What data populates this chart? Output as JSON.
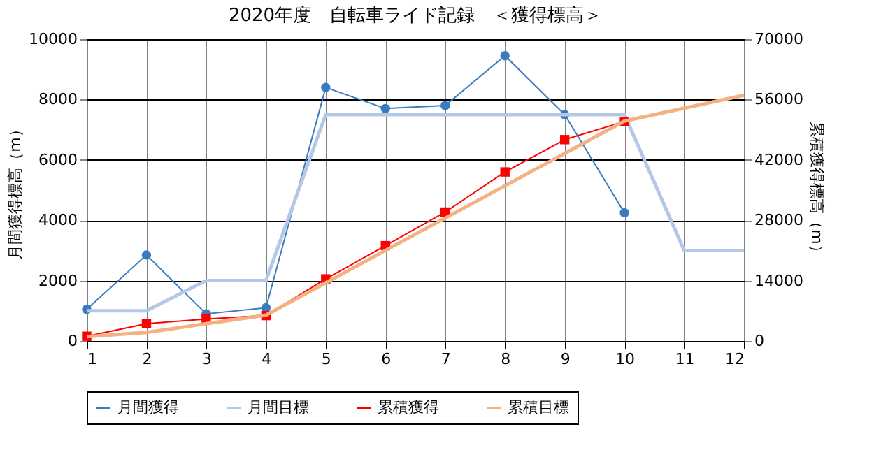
{
  "chart_data": {
    "type": "line",
    "title": "2020年度　自転車ライド記録　＜獲得標高＞",
    "x": [
      1,
      2,
      3,
      4,
      5,
      6,
      7,
      8,
      9,
      10,
      11,
      12
    ],
    "xlim": [
      1,
      12
    ],
    "xticks": [
      1,
      2,
      3,
      4,
      5,
      6,
      7,
      8,
      9,
      10,
      11,
      12
    ],
    "ylabel": "月間獲得標高（m）",
    "y2label": "累積獲得標高（m）",
    "ylim": [
      0,
      10000
    ],
    "yticks": [
      0,
      2000,
      4000,
      6000,
      8000,
      10000
    ],
    "y2lim": [
      0,
      70000
    ],
    "y2ticks": [
      0,
      14000,
      28000,
      42000,
      56000,
      70000
    ],
    "grid": true,
    "legend": "bottom",
    "series": [
      {
        "name": "月間獲得",
        "color": "#3a7bbf",
        "marker": "circle",
        "values": [
          1050,
          2850,
          900,
          1100,
          8400,
          7700,
          7800,
          9450,
          7500,
          4250,
          null,
          null
        ]
      },
      {
        "name": "月間目標",
        "color": "#b4c7e7",
        "marker": "none",
        "values": [
          1000,
          1000,
          2000,
          2000,
          7500,
          7500,
          7500,
          7500,
          7500,
          7500,
          3000,
          3000
        ]
      },
      {
        "name": "累積獲得",
        "color": "#ff0000",
        "marker": "square",
        "axis": "y2",
        "values": [
          1100,
          4000,
          5100,
          5900,
          14400,
          22100,
          29900,
          39200,
          46700,
          50900,
          null,
          null
        ]
      },
      {
        "name": "累積目標",
        "color": "#f4b183",
        "marker": "none",
        "axis": "y2",
        "values": [
          1000,
          2000,
          4000,
          6000,
          13500,
          21000,
          28500,
          36000,
          43500,
          51000,
          54000,
          57000
        ]
      }
    ]
  }
}
